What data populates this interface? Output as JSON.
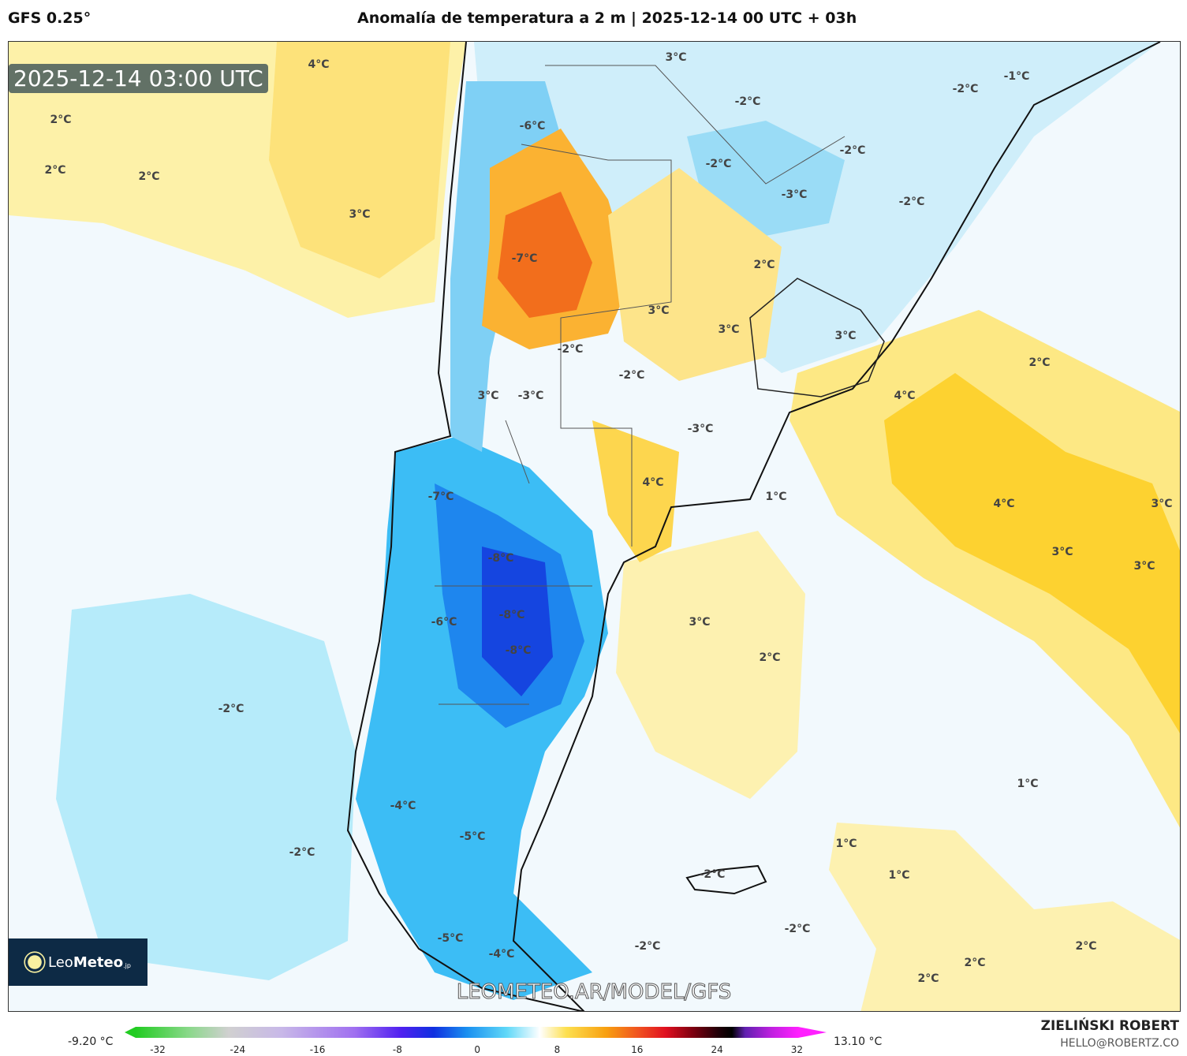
{
  "header": {
    "model": "GFS 0.25°",
    "title": "Anomalía de temperatura a 2 m | 2025-12-14 00 UTC + 03h"
  },
  "map": {
    "timestamp": "2025-12-14 03:00 UTC",
    "url_watermark": "LEOMETEO.AR/MODEL/GFS",
    "logo": {
      "part1": "Leo",
      "part2": "Meteo",
      "part3": ".jp"
    },
    "labels": [
      "4°C",
      "3°C",
      "-1°C",
      "-2°C",
      "-2°C",
      "2°C",
      "2°C",
      "2°C",
      "3°C",
      "-6°C",
      "-2°C",
      "-2°C",
      "-3°C",
      "-2°C",
      "2°C",
      "-7°C",
      "3°C",
      "3°C",
      "3°C",
      "-2°C",
      "-2°C",
      "2°C",
      "4°C",
      "3°C",
      "-3°C",
      "-3°C",
      "4°C",
      "1°C",
      "4°C",
      "3°C",
      "-7°C",
      "3°C",
      "3°C",
      "-8°C",
      "-8°C",
      "-6°C",
      "-8°C",
      "3°C",
      "2°C",
      "-2°C",
      "1°C",
      "-4°C",
      "-5°C",
      "1°C",
      "1°C",
      "-2°C",
      "-2°C",
      "-2°C",
      "-5°C",
      "-4°C",
      "-2°C",
      "2°C",
      "2°C",
      "2°C"
    ]
  },
  "colorbar": {
    "min_label": "-9.20 °C",
    "max_label": "13.10 °C",
    "ticks": [
      "-32",
      "-24",
      "-16",
      "-8",
      "0",
      "8",
      "16",
      "24",
      "32"
    ]
  },
  "credits": {
    "author": "ZIELIŃSKI ROBERT",
    "email": "HELLO@ROBERTZ.CO"
  }
}
